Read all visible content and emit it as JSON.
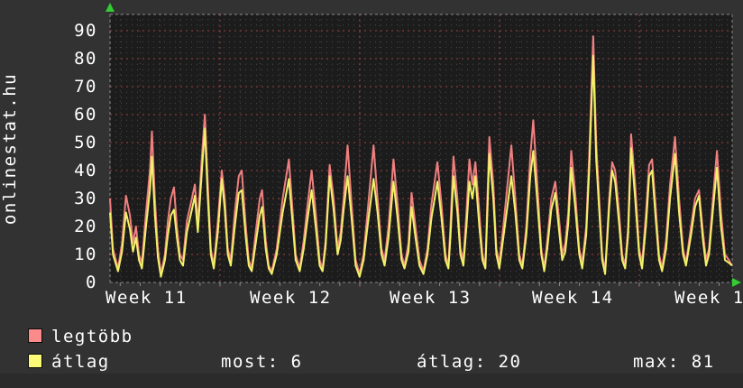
{
  "watermark": "onlinestat.hu",
  "legend": {
    "items": [
      {
        "label": "legtöbb",
        "color": "#fb8a8a"
      },
      {
        "label": "átlag",
        "color": "#fbfb78"
      }
    ]
  },
  "stats": {
    "most": "most: 6",
    "atlag": "átlag: 20",
    "max": "max: 81"
  },
  "colors": {
    "background": "#323232",
    "plot_background": "#1c1c1c",
    "grid_minor": "#4a4a4a",
    "grid_major": "#a04444",
    "axis": "#8a8a8a",
    "arrow": "#33cc33",
    "series_max": "#f08080",
    "series_avg": "#f1f169",
    "text": "#ffffff"
  },
  "chart_data": {
    "type": "line",
    "title": "",
    "xlabel": "",
    "ylabel": "",
    "x_unit": "days",
    "xlim": [
      0,
      31.2
    ],
    "ylim": [
      0,
      96
    ],
    "grid": true,
    "legend_position": "bottom-left",
    "y_ticks": [
      0,
      10,
      20,
      30,
      40,
      50,
      60,
      70,
      80,
      90
    ],
    "x_tick_labels": [
      "Week 11",
      "Week 12",
      "Week 13",
      "Week 14",
      "Week 1"
    ],
    "series_names": [
      "legtöbb (max)",
      "átlag (average)"
    ],
    "summary": {
      "current": 6,
      "average": 20,
      "max": 81
    },
    "points": [
      [
        0,
        30,
        25
      ],
      [
        0.15,
        12,
        10
      ],
      [
        0.4,
        5,
        4
      ],
      [
        0.6,
        14,
        11
      ],
      [
        0.8,
        31,
        25
      ],
      [
        1,
        24,
        19
      ],
      [
        1.15,
        14,
        11
      ],
      [
        1.3,
        20,
        16
      ],
      [
        1.45,
        10,
        8
      ],
      [
        1.6,
        7,
        5
      ],
      [
        1.8,
        25,
        20
      ],
      [
        2,
        40,
        33
      ],
      [
        2.1,
        54,
        45
      ],
      [
        2.25,
        30,
        24
      ],
      [
        2.4,
        12,
        9
      ],
      [
        2.55,
        3,
        2
      ],
      [
        2.75,
        10,
        8
      ],
      [
        2.9,
        22,
        17
      ],
      [
        3.05,
        30,
        24
      ],
      [
        3.2,
        34,
        26
      ],
      [
        3.35,
        20,
        16
      ],
      [
        3.5,
        10,
        8
      ],
      [
        3.66,
        8,
        6
      ],
      [
        3.85,
        22,
        18
      ],
      [
        4.1,
        30,
        26
      ],
      [
        4.25,
        35,
        31
      ],
      [
        4.4,
        21,
        18
      ],
      [
        4.6,
        45,
        40
      ],
      [
        4.75,
        60,
        55
      ],
      [
        4.9,
        35,
        30
      ],
      [
        5.05,
        12,
        10
      ],
      [
        5.2,
        6,
        5
      ],
      [
        5.4,
        22,
        18
      ],
      [
        5.6,
        40,
        37
      ],
      [
        5.75,
        30,
        26
      ],
      [
        5.9,
        12,
        10
      ],
      [
        6.05,
        8,
        6
      ],
      [
        6.25,
        25,
        20
      ],
      [
        6.45,
        38,
        32
      ],
      [
        6.6,
        40,
        33
      ],
      [
        6.8,
        20,
        16
      ],
      [
        6.95,
        8,
        6
      ],
      [
        7.1,
        5,
        4
      ],
      [
        7.3,
        18,
        14
      ],
      [
        7.5,
        30,
        24
      ],
      [
        7.62,
        33,
        27
      ],
      [
        7.8,
        15,
        12
      ],
      [
        7.95,
        6,
        5
      ],
      [
        8.1,
        4,
        3
      ],
      [
        8.35,
        12,
        10
      ],
      [
        8.65,
        30,
        25
      ],
      [
        8.96,
        44,
        37
      ],
      [
        9.1,
        30,
        25
      ],
      [
        9.3,
        10,
        8
      ],
      [
        9.5,
        5,
        4
      ],
      [
        9.7,
        15,
        12
      ],
      [
        9.9,
        28,
        23
      ],
      [
        10.1,
        40,
        33
      ],
      [
        10.3,
        25,
        20
      ],
      [
        10.5,
        8,
        6
      ],
      [
        10.65,
        5,
        4
      ],
      [
        10.8,
        15,
        13
      ],
      [
        11,
        42,
        38
      ],
      [
        11.2,
        30,
        26
      ],
      [
        11.4,
        12,
        10
      ],
      [
        11.55,
        18,
        15
      ],
      [
        11.7,
        30,
        26
      ],
      [
        11.9,
        49,
        38
      ],
      [
        12.1,
        28,
        23
      ],
      [
        12.3,
        8,
        6
      ],
      [
        12.5,
        3,
        2
      ],
      [
        12.7,
        10,
        8
      ],
      [
        12.9,
        25,
        20
      ],
      [
        13.2,
        49,
        37
      ],
      [
        13.4,
        30,
        25
      ],
      [
        13.6,
        12,
        10
      ],
      [
        13.75,
        8,
        6
      ],
      [
        13.95,
        20,
        16
      ],
      [
        14.2,
        44,
        36
      ],
      [
        14.4,
        28,
        23
      ],
      [
        14.6,
        10,
        8
      ],
      [
        14.75,
        6,
        5
      ],
      [
        14.95,
        14,
        11
      ],
      [
        15.1,
        32,
        27
      ],
      [
        15.3,
        20,
        16
      ],
      [
        15.5,
        8,
        6
      ],
      [
        15.7,
        4,
        3
      ],
      [
        15.9,
        12,
        10
      ],
      [
        16.1,
        28,
        23
      ],
      [
        16.4,
        43,
        36
      ],
      [
        16.6,
        28,
        23
      ],
      [
        16.8,
        10,
        8
      ],
      [
        16.95,
        6,
        5
      ],
      [
        17.05,
        20,
        16
      ],
      [
        17.2,
        45,
        38
      ],
      [
        17.4,
        30,
        25
      ],
      [
        17.55,
        12,
        10
      ],
      [
        17.7,
        8,
        6
      ],
      [
        17.85,
        25,
        20
      ],
      [
        18,
        44,
        36
      ],
      [
        18.15,
        35,
        30
      ],
      [
        18.3,
        43,
        38
      ],
      [
        18.5,
        25,
        20
      ],
      [
        18.65,
        10,
        8
      ],
      [
        18.8,
        6,
        5
      ],
      [
        18.9,
        30,
        25
      ],
      [
        19,
        52,
        46
      ],
      [
        19.2,
        35,
        30
      ],
      [
        19.35,
        12,
        10
      ],
      [
        19.5,
        7,
        5
      ],
      [
        19.7,
        20,
        16
      ],
      [
        20.1,
        49,
        38
      ],
      [
        20.3,
        30,
        25
      ],
      [
        20.5,
        10,
        8
      ],
      [
        20.65,
        6,
        5
      ],
      [
        20.85,
        20,
        17
      ],
      [
        21.05,
        45,
        38
      ],
      [
        21.2,
        58,
        47
      ],
      [
        21.4,
        35,
        29
      ],
      [
        21.6,
        12,
        10
      ],
      [
        21.75,
        5,
        4
      ],
      [
        21.9,
        15,
        12
      ],
      [
        22.1,
        30,
        26
      ],
      [
        22.3,
        36,
        32
      ],
      [
        22.5,
        22,
        18
      ],
      [
        22.65,
        10,
        8
      ],
      [
        22.8,
        14,
        11
      ],
      [
        22.95,
        25,
        21
      ],
      [
        23.1,
        47,
        41
      ],
      [
        23.3,
        32,
        27
      ],
      [
        23.5,
        12,
        10
      ],
      [
        23.65,
        7,
        5
      ],
      [
        23.85,
        20,
        17
      ],
      [
        24,
        45,
        40
      ],
      [
        24.2,
        88,
        81
      ],
      [
        24.35,
        50,
        44
      ],
      [
        24.5,
        30,
        26
      ],
      [
        24.65,
        10,
        8
      ],
      [
        24.8,
        4,
        3
      ],
      [
        25,
        30,
        27
      ],
      [
        25.15,
        43,
        40
      ],
      [
        25.3,
        40,
        36
      ],
      [
        25.5,
        25,
        21
      ],
      [
        25.65,
        10,
        8
      ],
      [
        25.8,
        6,
        5
      ],
      [
        25.95,
        20,
        17
      ],
      [
        26.1,
        53,
        48
      ],
      [
        26.3,
        35,
        30
      ],
      [
        26.5,
        12,
        10
      ],
      [
        26.65,
        7,
        5
      ],
      [
        26.85,
        25,
        21
      ],
      [
        27,
        42,
        38
      ],
      [
        27.15,
        44,
        40
      ],
      [
        27.35,
        25,
        21
      ],
      [
        27.5,
        10,
        8
      ],
      [
        27.65,
        5,
        4
      ],
      [
        27.85,
        15,
        12
      ],
      [
        28.05,
        35,
        30
      ],
      [
        28.3,
        52,
        46
      ],
      [
        28.5,
        30,
        25
      ],
      [
        28.7,
        12,
        10
      ],
      [
        28.85,
        7,
        6
      ],
      [
        29.1,
        20,
        17
      ],
      [
        29.3,
        30,
        27
      ],
      [
        29.5,
        33,
        31
      ],
      [
        29.7,
        18,
        15
      ],
      [
        29.85,
        8,
        6
      ],
      [
        30,
        12,
        10
      ],
      [
        30.2,
        30,
        26
      ],
      [
        30.4,
        47,
        41
      ],
      [
        30.6,
        25,
        20
      ],
      [
        30.8,
        10,
        8
      ],
      [
        31,
        8,
        7
      ],
      [
        31.15,
        6,
        6
      ]
    ]
  }
}
